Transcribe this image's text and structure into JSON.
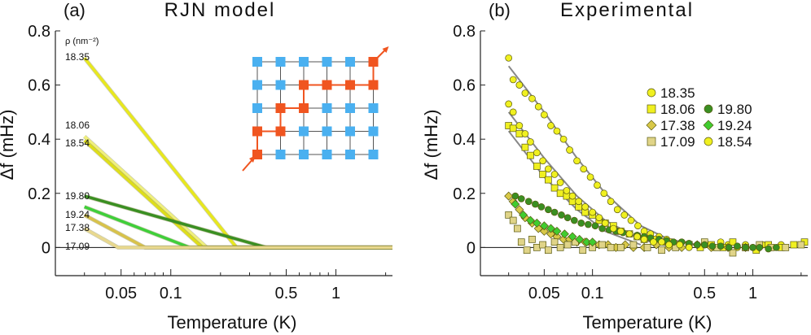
{
  "chart_data": [
    {
      "type": "line",
      "panel_label": "(a)",
      "title": "RJN model",
      "xlabel": "Temperature (K)",
      "ylabel": "Δf (mHz)",
      "xscale": "log",
      "xlim": [
        0.02,
        2.2
      ],
      "ylim": [
        -0.05,
        0.8
      ],
      "xticks": [
        0.05,
        0.1,
        0.5,
        1
      ],
      "xtick_labels": [
        "0.05",
        "0.1",
        "0.5",
        "1"
      ],
      "yticks": [
        0,
        0.2,
        0.4,
        0.6,
        0.8
      ],
      "ytick_labels": [
        "0",
        "0.2",
        "0.4",
        "0.6",
        "0.8"
      ],
      "legend_header": "ρ (nm⁻²)",
      "zero_line": true,
      "series": [
        {
          "name": "18.35",
          "color": "#e8e81e",
          "x": [
            0.03,
            0.25,
            2.2
          ],
          "values": [
            0.7,
            0.0,
            0.0
          ]
        },
        {
          "name": "18.06",
          "color": "#f0f07a",
          "x": [
            0.03,
            0.165,
            2.2
          ],
          "values": [
            0.41,
            0.0,
            0.0
          ]
        },
        {
          "name": "18.54",
          "color": "#dede1a",
          "x": [
            0.03,
            0.155,
            2.2
          ],
          "values": [
            0.395,
            0.0,
            0.0
          ]
        },
        {
          "name": "19.80",
          "color": "#3a8f22",
          "x": [
            0.03,
            0.38,
            2.2
          ],
          "values": [
            0.19,
            0.0,
            0.0
          ]
        },
        {
          "name": "19.24",
          "color": "#3fcf3a",
          "x": [
            0.03,
            0.13,
            2.2
          ],
          "values": [
            0.15,
            0.0,
            0.0
          ]
        },
        {
          "name": "17.38",
          "color": "#d8c24a",
          "x": [
            0.03,
            0.07,
            2.2
          ],
          "values": [
            0.12,
            0.0,
            0.0
          ]
        },
        {
          "name": "17.09",
          "color": "#e8d88e",
          "x": [
            0.03,
            0.048,
            2.2
          ],
          "values": [
            0.07,
            0.0,
            0.0
          ]
        }
      ],
      "inset": {
        "rows": [
          [
            "blue",
            "blue",
            "blue",
            "blue",
            "blue",
            "red"
          ],
          [
            "blue",
            "blue",
            "red",
            "red",
            "red",
            "red"
          ],
          [
            "blue",
            "red",
            "red",
            "blue",
            "blue",
            "blue"
          ],
          [
            "red",
            "red",
            "blue",
            "blue",
            "blue",
            "blue"
          ],
          [
            "red",
            "blue",
            "blue",
            "blue",
            "blue",
            "blue"
          ]
        ],
        "colors": {
          "blue": "#4ab0f0",
          "red": "#f05520"
        }
      }
    },
    {
      "type": "scatter",
      "panel_label": "(b)",
      "title": "Experimental",
      "xlabel": "Temperature (K)",
      "ylabel": "Δf (mHz)",
      "xscale": "log",
      "xlim": [
        0.02,
        2.2
      ],
      "ylim": [
        -0.05,
        0.8
      ],
      "xticks": [
        0.05,
        0.1,
        0.5,
        1
      ],
      "xtick_labels": [
        "0.05",
        "0.1",
        "0.5",
        "1"
      ],
      "yticks": [
        0,
        0.2,
        0.4,
        0.6,
        0.8
      ],
      "ytick_labels": [
        "0",
        "0.2",
        "0.4",
        "0.6",
        "0.8"
      ],
      "zero_line": true,
      "legend_columns": [
        [
          "18.35",
          "18.06",
          "17.38",
          "17.09"
        ],
        [
          "19.80",
          "19.24",
          "18.54"
        ]
      ],
      "series": [
        {
          "name": "18.35",
          "marker": "circle",
          "color": "#f0f020",
          "x": [
            0.03,
            0.032,
            0.035,
            0.038,
            0.042,
            0.046,
            0.05,
            0.055,
            0.06,
            0.066,
            0.072,
            0.08,
            0.088,
            0.097,
            0.107,
            0.118,
            0.13,
            0.143,
            0.158,
            0.174,
            0.192,
            0.21,
            0.23,
            0.26,
            0.29,
            0.32,
            0.36,
            0.4,
            0.45,
            0.5,
            0.56,
            0.63,
            0.7,
            0.8,
            0.9,
            1.0,
            1.15,
            1.3,
            1.5
          ],
          "values": [
            0.7,
            0.62,
            0.6,
            0.57,
            0.55,
            0.52,
            0.49,
            0.45,
            0.43,
            0.4,
            0.36,
            0.32,
            0.29,
            0.26,
            0.23,
            0.2,
            0.17,
            0.14,
            0.12,
            0.1,
            0.08,
            0.06,
            0.05,
            0.04,
            0.03,
            0.02,
            0.02,
            0.01,
            0.01,
            0.01,
            0.0,
            0.02,
            0.01,
            0.0,
            0.01,
            0.0,
            0.01,
            0.0,
            0.01
          ]
        },
        {
          "name": "18.06",
          "marker": "square",
          "color": "#f0f020",
          "x": [
            0.03,
            0.032,
            0.035,
            0.038,
            0.041,
            0.045,
            0.049,
            0.053,
            0.058,
            0.063,
            0.069,
            0.075,
            0.082,
            0.09,
            0.1,
            0.11,
            0.12,
            0.135,
            0.15,
            0.17,
            0.19,
            0.21,
            0.24,
            0.27,
            0.3,
            0.35,
            0.4,
            0.47,
            0.55,
            0.65,
            0.75,
            0.9,
            1.05,
            1.25,
            1.5,
            1.8,
            2.1
          ],
          "values": [
            0.45,
            0.44,
            0.42,
            0.37,
            0.34,
            0.3,
            0.27,
            0.25,
            0.22,
            0.2,
            0.19,
            0.17,
            0.15,
            0.13,
            0.12,
            0.1,
            0.09,
            0.08,
            0.06,
            0.05,
            0.04,
            0.03,
            0.03,
            0.02,
            0.02,
            0.01,
            0.01,
            0.0,
            0.01,
            0.0,
            0.02,
            0.0,
            -0.01,
            0.01,
            0.0,
            0.01,
            0.02
          ]
        },
        {
          "name": "17.38",
          "marker": "diamond",
          "color": "#d8c848",
          "x": [
            0.03,
            0.032,
            0.035,
            0.038,
            0.042,
            0.046,
            0.05,
            0.055,
            0.06,
            0.066,
            0.072,
            0.08,
            0.09,
            0.1,
            0.11,
            0.125,
            0.14,
            0.16,
            0.18,
            0.21,
            0.25,
            0.3,
            0.36,
            0.45,
            0.55,
            0.7,
            0.9,
            1.1
          ],
          "values": [
            0.19,
            0.17,
            0.14,
            0.11,
            0.09,
            0.07,
            0.06,
            0.05,
            0.04,
            0.03,
            0.03,
            0.02,
            0.02,
            0.01,
            0.01,
            0.01,
            0.0,
            0.01,
            0.0,
            0.0,
            0.01,
            0.0,
            0.0,
            0.01,
            0.0,
            0.0,
            0.0,
            0.0
          ]
        },
        {
          "name": "17.09",
          "marker": "square",
          "color": "#e0d488",
          "x": [
            0.03,
            0.032,
            0.034,
            0.036,
            0.039,
            0.042,
            0.045,
            0.049,
            0.053,
            0.058,
            0.063,
            0.07,
            0.078,
            0.087,
            0.1,
            0.115,
            0.13,
            0.15,
            0.18,
            0.22,
            0.27,
            0.33,
            0.4,
            0.5,
            0.6,
            0.75,
            0.9,
            1.1,
            1.3,
            1.6,
            2.0
          ],
          "values": [
            0.12,
            0.1,
            0.07,
            0.02,
            -0.01,
            0.03,
            0.0,
            0.01,
            -0.01,
            0.02,
            0.0,
            0.01,
            0.02,
            -0.01,
            0.0,
            0.01,
            0.0,
            0.0,
            0.01,
            0.0,
            -0.01,
            0.0,
            0.01,
            0.02,
            0.0,
            -0.02,
            0.0,
            0.01,
            0.0,
            0.0,
            0.01
          ]
        },
        {
          "name": "19.80",
          "marker": "circle",
          "color": "#3a8f22",
          "x": [
            0.033,
            0.036,
            0.04,
            0.044,
            0.048,
            0.053,
            0.058,
            0.064,
            0.07,
            0.077,
            0.085,
            0.094,
            0.104,
            0.115,
            0.127,
            0.14,
            0.155,
            0.17,
            0.19,
            0.21,
            0.23,
            0.26,
            0.29,
            0.32,
            0.36,
            0.4,
            0.45,
            0.5,
            0.56,
            0.63,
            0.71,
            0.8,
            0.9,
            1.0,
            1.1,
            1.25,
            1.4
          ],
          "values": [
            0.19,
            0.18,
            0.17,
            0.16,
            0.15,
            0.14,
            0.13,
            0.12,
            0.11,
            0.1,
            0.09,
            0.085,
            0.08,
            0.07,
            0.065,
            0.06,
            0.055,
            0.05,
            0.045,
            0.04,
            0.035,
            0.03,
            0.025,
            0.02,
            0.02,
            0.015,
            0.01,
            0.01,
            0.005,
            0.005,
            0.0,
            0.005,
            0.0,
            0.0,
            0.0,
            -0.005,
            0.0
          ]
        },
        {
          "name": "19.24",
          "marker": "diamond",
          "color": "#40cc30",
          "x": [
            0.033,
            0.037,
            0.041,
            0.045,
            0.05,
            0.055,
            0.06,
            0.067,
            0.075,
            0.083,
            0.092,
            0.1
          ],
          "values": [
            0.16,
            0.12,
            0.1,
            0.09,
            0.08,
            0.07,
            0.06,
            0.05,
            0.04,
            0.03,
            0.02,
            0.02
          ]
        },
        {
          "name": "18.54",
          "marker": "circle",
          "color": "#f0f020",
          "x": [
            0.03,
            0.032,
            0.035,
            0.038,
            0.041,
            0.045,
            0.049,
            0.053,
            0.058,
            0.063,
            0.069,
            0.075,
            0.082,
            0.09,
            0.1,
            0.11,
            0.12,
            0.135,
            0.15,
            0.17,
            0.19,
            0.21,
            0.24,
            0.27,
            0.3,
            0.35,
            0.4
          ],
          "values": [
            0.53,
            0.5,
            0.45,
            0.42,
            0.39,
            0.35,
            0.32,
            0.29,
            0.27,
            0.24,
            0.21,
            0.19,
            0.17,
            0.15,
            0.13,
            0.11,
            0.09,
            0.07,
            0.06,
            0.05,
            0.04,
            0.03,
            0.02,
            0.02,
            0.01,
            0.01,
            0.0
          ]
        }
      ],
      "fit_lines": [
        {
          "for": "18.35",
          "color": "#888888",
          "x": [
            0.03,
            0.05,
            0.08,
            0.12,
            0.2,
            0.3,
            0.5
          ],
          "values": [
            0.67,
            0.5,
            0.33,
            0.2,
            0.08,
            0.03,
            0.005
          ]
        },
        {
          "for": "18.54",
          "color": "#888888",
          "x": [
            0.03,
            0.05,
            0.08,
            0.12,
            0.2,
            0.3
          ],
          "values": [
            0.5,
            0.33,
            0.19,
            0.1,
            0.03,
            0.005
          ]
        },
        {
          "for": "18.06",
          "color": "#888888",
          "x": [
            0.03,
            0.05,
            0.08,
            0.12,
            0.2
          ],
          "values": [
            0.43,
            0.26,
            0.14,
            0.06,
            0.01
          ]
        }
      ]
    }
  ]
}
